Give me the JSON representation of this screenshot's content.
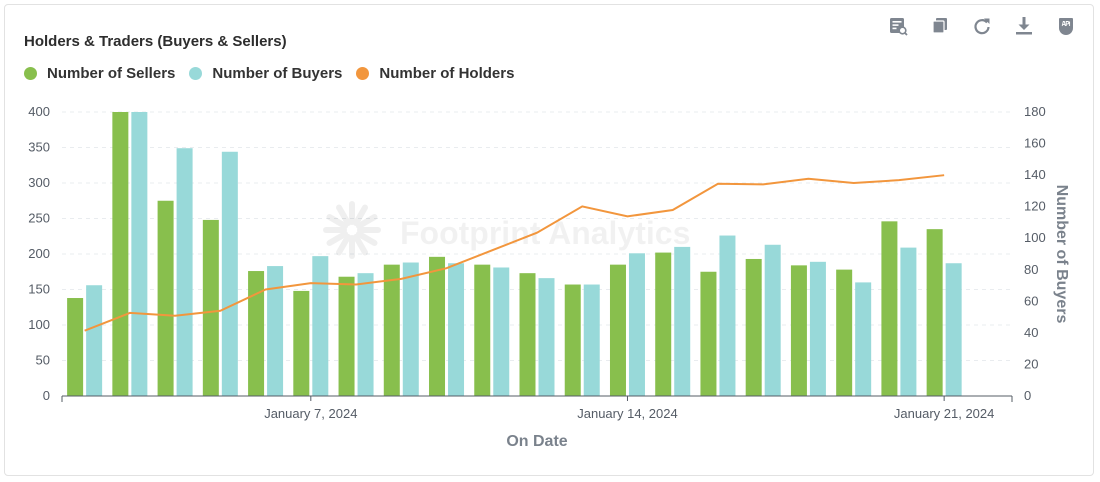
{
  "chart_data": {
    "type": "bar",
    "title": "Holders & Traders (Buyers & Sellers)",
    "xlabel": "On Date",
    "ylabel_left": "",
    "ylabel_right": "Number of Buyers",
    "x_tick_labels": [
      "January 7, 2024",
      "January 14, 2024",
      "January 21, 2024"
    ],
    "x": [
      "2024-01-02",
      "2024-01-03",
      "2024-01-04",
      "2024-01-05",
      "2024-01-06",
      "2024-01-07",
      "2024-01-08",
      "2024-01-09",
      "2024-01-10",
      "2024-01-11",
      "2024-01-12",
      "2024-01-13",
      "2024-01-14",
      "2024-01-15",
      "2024-01-16",
      "2024-01-17",
      "2024-01-18",
      "2024-01-19",
      "2024-01-20",
      "2024-01-21",
      "2024-01-22"
    ],
    "ylim_left": [
      0,
      400
    ],
    "yticks_left": [
      0,
      50,
      100,
      150,
      200,
      250,
      300,
      350,
      400
    ],
    "ylim_right": [
      0,
      180
    ],
    "yticks_right": [
      0,
      20,
      40,
      60,
      80,
      100,
      120,
      140,
      160,
      180
    ],
    "grid": true,
    "legend_position": "top-left",
    "series": [
      {
        "name": "Number of Sellers",
        "type": "bar",
        "axis": "left",
        "color": "#88bf4d",
        "values": [
          138,
          400,
          275,
          248,
          176,
          148,
          168,
          185,
          196,
          185,
          173,
          157,
          185,
          202,
          175,
          193,
          184,
          178,
          246,
          235,
          0
        ]
      },
      {
        "name": "Number of Buyers",
        "type": "bar",
        "axis": "left",
        "color": "#98d9d9",
        "values": [
          156,
          400,
          349,
          344,
          183,
          197,
          173,
          188,
          187,
          181,
          166,
          157,
          201,
          210,
          226,
          213,
          189,
          160,
          209,
          187,
          0
        ]
      },
      {
        "name": "Number of Holders",
        "type": "line",
        "axis": "left",
        "color": "#f2963d",
        "values": [
          92,
          117,
          113,
          120,
          150,
          159,
          157,
          165,
          180,
          205,
          230,
          267,
          253,
          262,
          299,
          298,
          306,
          300,
          304,
          311,
          0
        ]
      }
    ],
    "watermark": "Footprint Analytics"
  },
  "toolbar": {
    "icons": [
      "data-table-icon",
      "copy-icon",
      "refresh-icon",
      "download-icon",
      "api-icon"
    ]
  }
}
